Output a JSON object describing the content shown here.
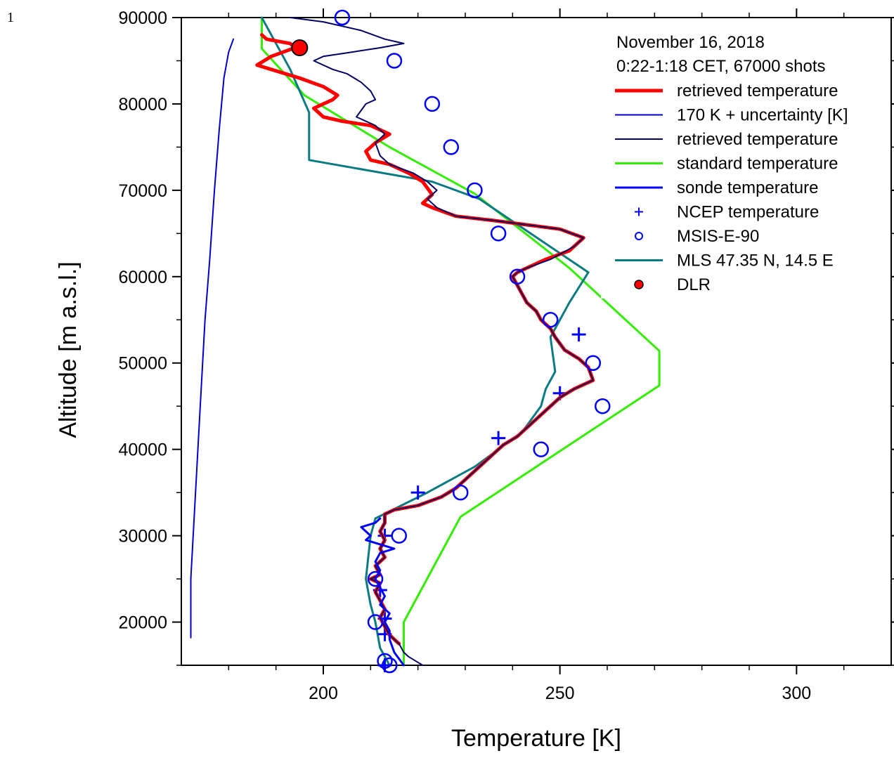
{
  "page_number": "1",
  "chart_data": {
    "type": "line",
    "xlabel": "Temperature [K]",
    "ylabel": "Altitude [m a.s.l.]",
    "xlim": [
      170,
      320
    ],
    "ylim": [
      15000,
      90000
    ],
    "x_ticks": [
      200,
      250,
      300
    ],
    "y_ticks": [
      20000,
      30000,
      40000,
      50000,
      60000,
      70000,
      80000,
      90000
    ],
    "legend_header": [
      "November 16, 2018",
      "0:22-1:18 CET, 67000 shots"
    ],
    "legend_position": "top-right",
    "series": [
      {
        "name": "retrieved temperature",
        "kind": "line",
        "color": "#ff0000",
        "width": 5,
        "points": [
          [
            216,
            17500
          ],
          [
            214,
            18500
          ],
          [
            213,
            19500
          ],
          [
            212,
            20500
          ],
          [
            213,
            21500
          ],
          [
            212,
            22500
          ],
          [
            211,
            23500
          ],
          [
            212,
            24500
          ],
          [
            210,
            25000
          ],
          [
            212,
            25500
          ],
          [
            211,
            26500
          ],
          [
            213,
            27500
          ],
          [
            212,
            28500
          ],
          [
            213,
            29500
          ],
          [
            212,
            30500
          ],
          [
            213,
            31500
          ],
          [
            213,
            32500
          ],
          [
            215,
            33000
          ],
          [
            220,
            33500
          ],
          [
            225,
            34500
          ],
          [
            228,
            35500
          ],
          [
            230,
            36500
          ],
          [
            232,
            37500
          ],
          [
            234,
            38500
          ],
          [
            236,
            39500
          ],
          [
            238,
            40500
          ],
          [
            241,
            41500
          ],
          [
            244,
            43000
          ],
          [
            247,
            44500
          ],
          [
            250,
            46000
          ],
          [
            253,
            47000
          ],
          [
            257,
            48000
          ],
          [
            256,
            49500
          ],
          [
            254,
            50500
          ],
          [
            251,
            51500
          ],
          [
            249,
            53000
          ],
          [
            248,
            54000
          ],
          [
            246,
            55000
          ],
          [
            245,
            56000
          ],
          [
            243,
            57000
          ],
          [
            242,
            58000
          ],
          [
            241,
            59000
          ],
          [
            240,
            60000
          ],
          [
            241,
            60500
          ],
          [
            243,
            61000
          ],
          [
            247,
            62000
          ],
          [
            252,
            63000
          ],
          [
            255,
            64500
          ],
          [
            250,
            65500
          ],
          [
            243,
            66000
          ],
          [
            236,
            66500
          ],
          [
            228,
            67000
          ],
          [
            223,
            68000
          ],
          [
            221,
            68500
          ],
          [
            223,
            69500
          ],
          [
            221,
            71000
          ],
          [
            218,
            72000
          ],
          [
            214,
            73000
          ],
          [
            210,
            73500
          ],
          [
            209,
            74500
          ],
          [
            211,
            75500
          ],
          [
            214,
            76500
          ],
          [
            210,
            77500
          ],
          [
            204,
            78000
          ],
          [
            200,
            78500
          ],
          [
            198,
            79500
          ],
          [
            202,
            80500
          ],
          [
            203,
            81000
          ],
          [
            200,
            82000
          ],
          [
            195,
            83000
          ],
          [
            189,
            84000
          ],
          [
            186,
            84500
          ],
          [
            189,
            85500
          ],
          [
            194,
            86500
          ],
          [
            193,
            87000
          ],
          [
            188,
            87500
          ],
          [
            187,
            88000
          ]
        ]
      },
      {
        "name": "170 K + uncertainty [K]",
        "kind": "line",
        "color": "#0000cc",
        "width": 2,
        "points": [
          [
            172,
            18200
          ],
          [
            172,
            25000
          ],
          [
            173,
            35000
          ],
          [
            174,
            45000
          ],
          [
            175,
            55000
          ],
          [
            176,
            62000
          ],
          [
            177,
            70000
          ],
          [
            178,
            77000
          ],
          [
            179,
            83000
          ],
          [
            180,
            86000
          ],
          [
            181,
            87500
          ]
        ]
      },
      {
        "name": "retrieved temperature",
        "kind": "line",
        "color": "#000066",
        "width": 2,
        "points": [
          [
            221,
            15000
          ],
          [
            218,
            16000
          ],
          [
            217,
            16500
          ],
          [
            216,
            17500
          ],
          [
            214,
            18500
          ],
          [
            213,
            19500
          ],
          [
            212,
            20500
          ],
          [
            213,
            21500
          ],
          [
            212,
            22500
          ],
          [
            211,
            23500
          ],
          [
            212,
            24500
          ],
          [
            210,
            25000
          ],
          [
            212,
            25500
          ],
          [
            211,
            26500
          ],
          [
            213,
            27500
          ],
          [
            212,
            28500
          ],
          [
            213,
            29500
          ],
          [
            212,
            30500
          ],
          [
            213,
            31500
          ],
          [
            213,
            32500
          ],
          [
            215,
            33000
          ],
          [
            220,
            33500
          ],
          [
            225,
            34500
          ],
          [
            228,
            35500
          ],
          [
            230,
            36500
          ],
          [
            232,
            37500
          ],
          [
            234,
            38500
          ],
          [
            236,
            39500
          ],
          [
            238,
            40500
          ],
          [
            241,
            41500
          ],
          [
            244,
            43000
          ],
          [
            247,
            44500
          ],
          [
            250,
            46000
          ],
          [
            253,
            47000
          ],
          [
            257,
            48000
          ],
          [
            256,
            49500
          ],
          [
            254,
            50500
          ],
          [
            251,
            51500
          ],
          [
            249,
            53000
          ],
          [
            248,
            54000
          ],
          [
            246,
            55000
          ],
          [
            245,
            56000
          ],
          [
            243,
            57000
          ],
          [
            242,
            58000
          ],
          [
            241,
            59000
          ],
          [
            240,
            60000
          ],
          [
            241,
            60500
          ],
          [
            243,
            61000
          ],
          [
            248,
            62000
          ],
          [
            253,
            63500
          ],
          [
            255,
            64500
          ],
          [
            250,
            65500
          ],
          [
            243,
            66000
          ],
          [
            236,
            66500
          ],
          [
            228,
            67000
          ],
          [
            224,
            68000
          ],
          [
            222,
            69000
          ],
          [
            224,
            70000
          ],
          [
            222,
            71000
          ],
          [
            219,
            72000
          ],
          [
            214,
            73000
          ],
          [
            212,
            74000
          ],
          [
            211,
            75500
          ],
          [
            213,
            76500
          ],
          [
            211,
            77500
          ],
          [
            207,
            78500
          ],
          [
            209,
            80000
          ],
          [
            211,
            80500
          ],
          [
            210,
            81500
          ],
          [
            208,
            82500
          ],
          [
            205,
            83500
          ],
          [
            202,
            84000
          ],
          [
            198,
            85000
          ],
          [
            200,
            85500
          ],
          [
            206,
            86000
          ],
          [
            212,
            86500
          ],
          [
            217,
            87000
          ],
          [
            213,
            87500
          ],
          [
            208,
            88500
          ],
          [
            200,
            89500
          ],
          [
            193,
            90000
          ]
        ]
      },
      {
        "name": "standard temperature",
        "kind": "line",
        "color": "#33ee00",
        "width": 3,
        "points": [
          [
            217,
            15000
          ],
          [
            217,
            20000
          ],
          [
            229,
            32200
          ],
          [
            271,
            47400
          ],
          [
            271,
            51400
          ],
          [
            252,
            61000
          ],
          [
            232,
            69600
          ],
          [
            214,
            75000
          ],
          [
            196,
            81000
          ],
          [
            187,
            86400
          ],
          [
            187,
            90000
          ]
        ]
      },
      {
        "name": "sonde temperature",
        "kind": "line",
        "color": "#0000ff",
        "width": 3,
        "points": [
          [
            217,
            15000
          ],
          [
            215,
            16500
          ],
          [
            214,
            18000
          ],
          [
            214,
            19000
          ],
          [
            213,
            20000
          ],
          [
            214,
            21000
          ],
          [
            212,
            22000
          ],
          [
            213,
            23000
          ],
          [
            212,
            24000
          ],
          [
            211,
            25000
          ],
          [
            212,
            26000
          ],
          [
            211,
            27000
          ],
          [
            212,
            28000
          ],
          [
            215,
            28500
          ],
          [
            212,
            29000
          ],
          [
            209,
            29500
          ],
          [
            210,
            30000
          ],
          [
            208,
            31000
          ],
          [
            211,
            31500
          ],
          [
            212,
            32000
          ]
        ]
      },
      {
        "name": "NCEP temperature",
        "kind": "plus",
        "color": "#0000ff",
        "points": [
          [
            213,
            15000
          ],
          [
            213,
            18600
          ],
          [
            213,
            20400
          ],
          [
            212,
            23700
          ],
          [
            213,
            30000
          ],
          [
            220,
            35000
          ],
          [
            237,
            41300
          ],
          [
            250,
            46500
          ],
          [
            254,
            53300
          ]
        ]
      },
      {
        "name": "MSIS-E-90",
        "kind": "circle",
        "color": "#0000ff",
        "points": [
          [
            214,
            15000
          ],
          [
            213,
            15500
          ],
          [
            211,
            20000
          ],
          [
            211,
            25000
          ],
          [
            216,
            30000
          ],
          [
            229,
            35000
          ],
          [
            246,
            40000
          ],
          [
            259,
            45000
          ],
          [
            257,
            50000
          ],
          [
            248,
            55000
          ],
          [
            241,
            60000
          ],
          [
            237,
            65000
          ],
          [
            232,
            70000
          ],
          [
            227,
            75000
          ],
          [
            223,
            80000
          ],
          [
            215,
            85000
          ],
          [
            204,
            90000
          ]
        ]
      },
      {
        "name": "MLS 47.35 N, 14.5 E",
        "kind": "line",
        "color": "#0a7b83",
        "width": 3,
        "points": [
          [
            214,
            15000
          ],
          [
            212,
            17000
          ],
          [
            211,
            20000
          ],
          [
            210,
            22000
          ],
          [
            209,
            25000
          ],
          [
            210,
            30000
          ],
          [
            211,
            32000
          ],
          [
            222,
            35000
          ],
          [
            232,
            38000
          ],
          [
            242,
            42000
          ],
          [
            246,
            45000
          ],
          [
            247,
            47000
          ],
          [
            249,
            49000
          ],
          [
            248,
            53000
          ],
          [
            252,
            57000
          ],
          [
            256,
            60500
          ],
          [
            233,
            69000
          ],
          [
            223,
            71000
          ],
          [
            197,
            73500
          ],
          [
            197,
            79000
          ],
          [
            193,
            84000
          ],
          [
            187,
            90000
          ]
        ]
      },
      {
        "name": "DLR",
        "kind": "dot",
        "color": "#ff0000",
        "points": [
          [
            195,
            86500
          ]
        ]
      }
    ]
  }
}
